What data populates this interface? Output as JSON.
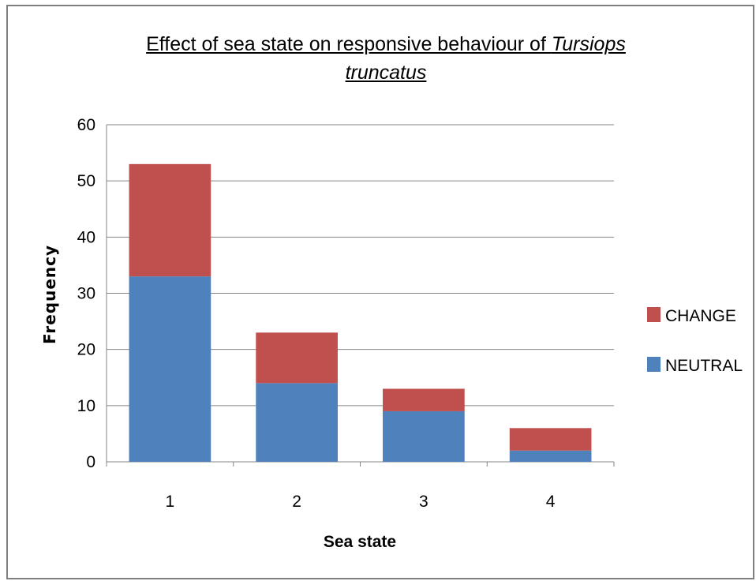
{
  "chart_data": {
    "type": "bar",
    "stacked": true,
    "title_parts": [
      "Effect of sea state on responsive behaviour of ",
      "Tursiops",
      "truncatus"
    ],
    "xlabel": "Sea state",
    "ylabel": "Frequency",
    "categories": [
      "1",
      "2",
      "3",
      "4"
    ],
    "ylim": [
      0,
      60
    ],
    "yticks": [
      0,
      10,
      20,
      30,
      40,
      50,
      60
    ],
    "grid": true,
    "legend_position": "right",
    "series": [
      {
        "name": "NEUTRAL",
        "color": "#4f81bd",
        "values": [
          33,
          14,
          9,
          2
        ]
      },
      {
        "name": "CHANGE",
        "color": "#c0504d",
        "values": [
          20,
          9,
          4,
          4
        ]
      }
    ]
  }
}
